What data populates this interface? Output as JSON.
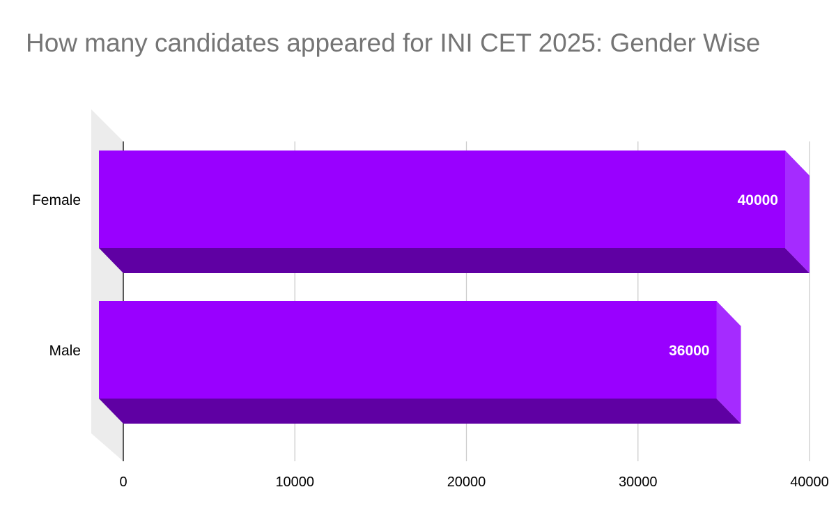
{
  "chart_data": {
    "type": "bar",
    "orientation": "horizontal",
    "style": "3d",
    "title": "How many candidates appeared for INI CET 2025: Gender Wise",
    "categories": [
      "Female",
      "Male"
    ],
    "values": [
      40000,
      36000
    ],
    "data_labels": [
      "40000",
      "36000"
    ],
    "xlim": [
      0,
      40000
    ],
    "ticks": [
      0,
      10000,
      20000,
      30000,
      40000
    ],
    "tick_labels": [
      "0",
      "10000",
      "20000",
      "30000",
      "40000"
    ],
    "xlabel": "",
    "ylabel": "",
    "grid": true,
    "legend": "none",
    "colors": {
      "bar_front": "#9900ff",
      "bar_bottom": "#5f00a3",
      "bar_side": "#a52bff",
      "grid": "#cccccc",
      "axis": "#000000",
      "wall": "#ececec",
      "title": "#757575"
    }
  }
}
